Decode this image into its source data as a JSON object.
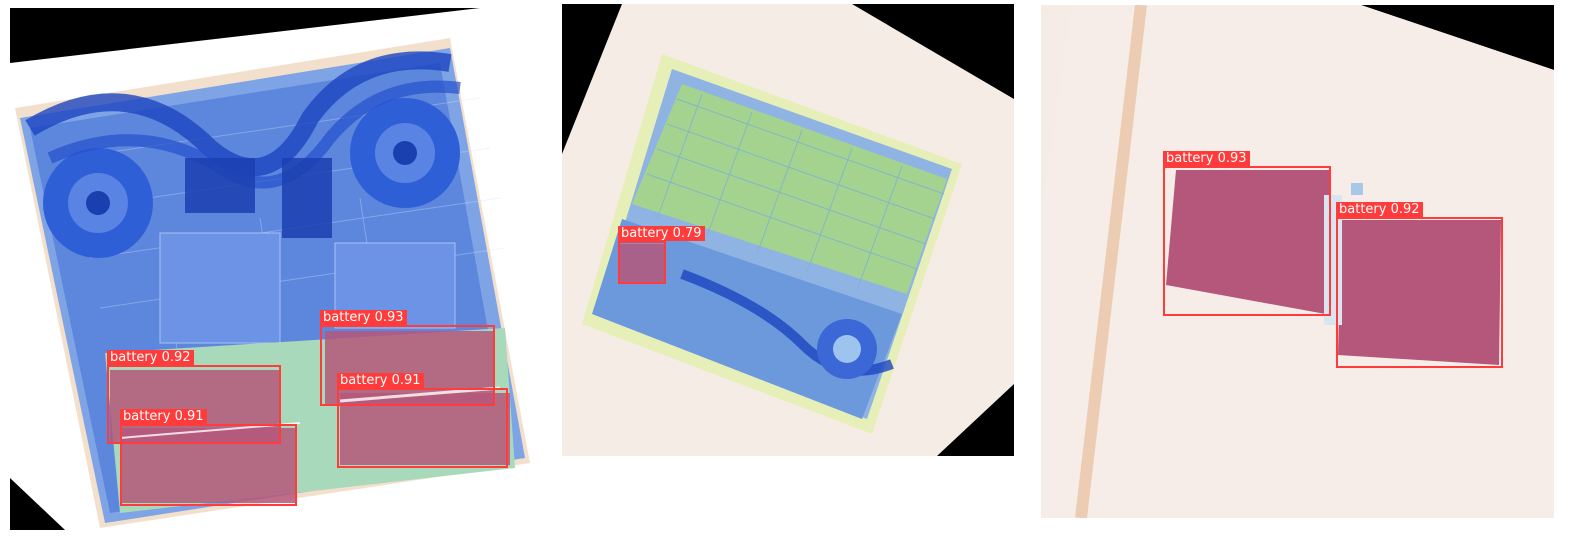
{
  "panels": [
    {
      "detections": [
        {
          "label": "battery",
          "score": "0.92"
        },
        {
          "label": "battery",
          "score": "0.93"
        },
        {
          "label": "battery",
          "score": "0.91"
        },
        {
          "label": "battery",
          "score": "0.91"
        }
      ]
    },
    {
      "detections": [
        {
          "label": "battery",
          "score": "0.79"
        }
      ]
    },
    {
      "detections": [
        {
          "label": "battery",
          "score": "0.93"
        },
        {
          "label": "battery",
          "score": "0.92"
        }
      ]
    }
  ],
  "colors": {
    "box": "#ff3b3b",
    "label_text": "#ffffff",
    "xray_blue": "#3f6fe0",
    "xray_green": "#a9d88a",
    "battery_fill": "#b5577a",
    "tray_bg": "#f6ece6"
  }
}
